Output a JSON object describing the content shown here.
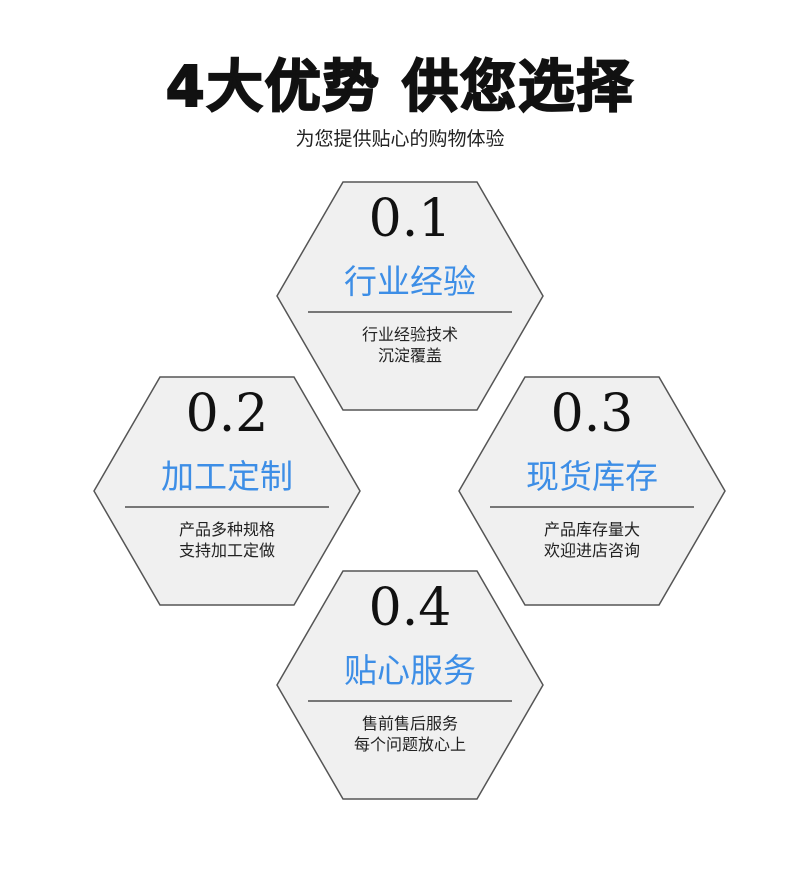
{
  "header": {
    "title": "4大优势 供您选择",
    "subtitle": "为您提供贴心的购物体验"
  },
  "colors": {
    "accent": "#3d8ee6",
    "hex_fill": "#f0f0f0",
    "hex_border": "#555555"
  },
  "items": [
    {
      "number": "0.1",
      "name": "行业经验",
      "desc1": "行业经验技术",
      "desc2": "沉淀覆盖"
    },
    {
      "number": "0.2",
      "name": "加工定制",
      "desc1": "产品多种规格",
      "desc2": "支持加工定做"
    },
    {
      "number": "0.3",
      "name": "现货库存",
      "desc1": "产品库存量大",
      "desc2": "欢迎进店咨询"
    },
    {
      "number": "0.4",
      "name": "贴心服务",
      "desc1": "售前售后服务",
      "desc2": "每个问题放心上"
    }
  ]
}
